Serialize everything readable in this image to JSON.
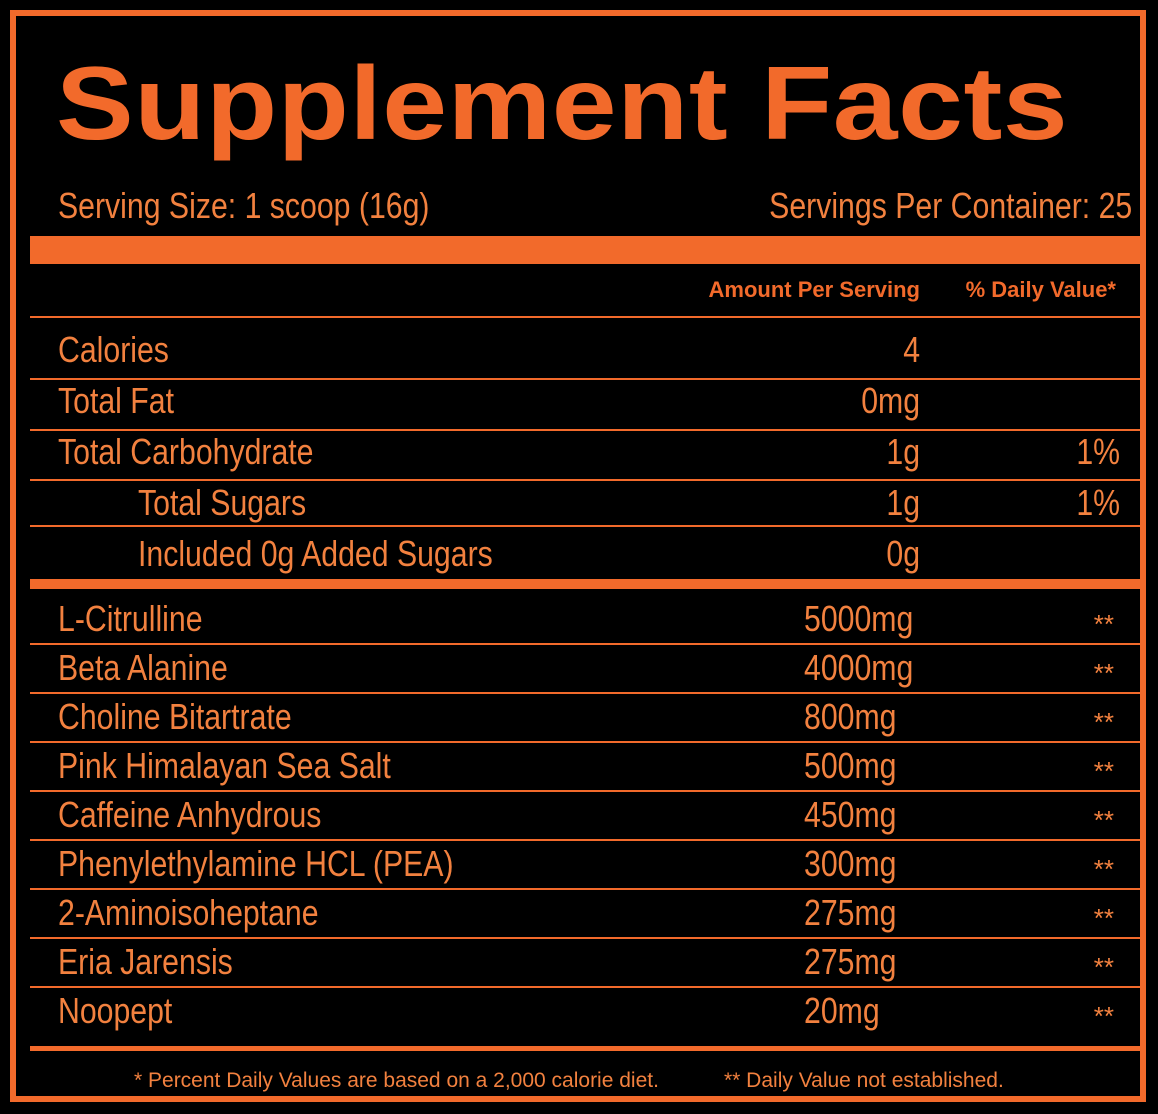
{
  "title": "Supplement Facts",
  "serving_size": "Serving Size: 1 scoop (16g)",
  "servings_per_container": "Servings Per Container: 25",
  "headers": {
    "amount": "Amount Per Serving",
    "daily_value": "% Daily Value*"
  },
  "nutrients": [
    {
      "name": "Calories",
      "amount": "4",
      "dv": "",
      "indent": false
    },
    {
      "name": "Total Fat",
      "amount": "0mg",
      "dv": "",
      "indent": false
    },
    {
      "name": "Total Carbohydrate",
      "amount": "1g",
      "dv": "1%",
      "indent": false
    },
    {
      "name": "Total Sugars",
      "amount": "1g",
      "dv": "1%",
      "indent": true
    },
    {
      "name": "Included 0g Added Sugars",
      "amount": "0g",
      "dv": "",
      "indent": true
    }
  ],
  "ingredients": [
    {
      "name": "L-Citrulline",
      "amount": "5000mg",
      "dv": "**"
    },
    {
      "name": "Beta Alanine",
      "amount": "4000mg",
      "dv": "**"
    },
    {
      "name": "Choline Bitartrate",
      "amount": "800mg",
      "dv": "**"
    },
    {
      "name": "Pink Himalayan Sea Salt",
      "amount": "500mg",
      "dv": "**"
    },
    {
      "name": "Caffeine Anhydrous",
      "amount": "450mg",
      "dv": "**"
    },
    {
      "name": "Phenylethylamine HCL (PEA)",
      "amount": "300mg",
      "dv": "**"
    },
    {
      "name": "2-Aminoisoheptane",
      "amount": "275mg",
      "dv": "**"
    },
    {
      "name": "Eria Jarensis",
      "amount": "275mg",
      "dv": "**"
    },
    {
      "name": "Noopept",
      "amount": "20mg",
      "dv": "**"
    }
  ],
  "footnotes": {
    "percent_dv": "* Percent Daily Values are based on a 2,000 calorie diet.",
    "not_established": "** Daily Value not established."
  },
  "colors": {
    "accent": "#f26a2b",
    "text": "#f2813f",
    "background": "#000000"
  }
}
